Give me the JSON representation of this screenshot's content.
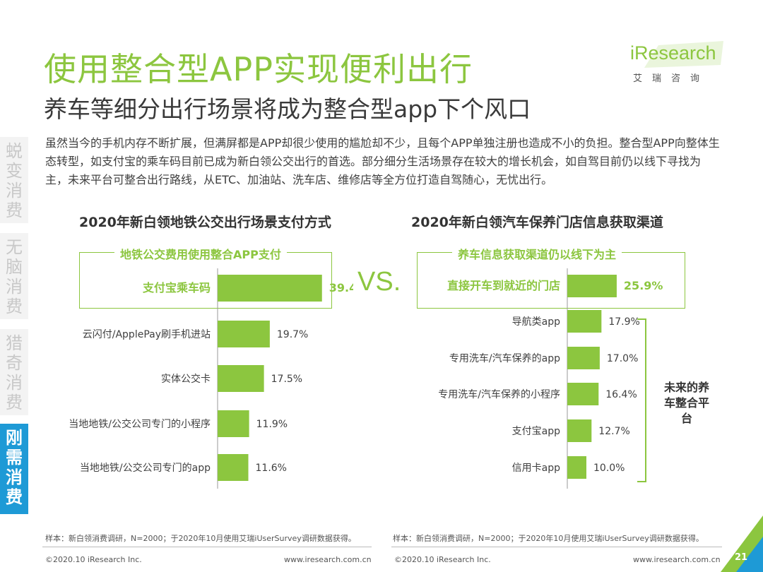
{
  "header": {
    "title": "使用整合型APP实现便利出行",
    "subtitle": "养车等细分出行场景将成为整合型app下个风口"
  },
  "logo": {
    "main": "iResearch",
    "sub": "艾瑞咨询"
  },
  "intro": "虽然当今的手机内存不断扩展，但满屏都是APP却很少使用的尴尬却不少，且每个APP单独注册也造成不小的负担。整合型APP向整体生态转型，如支付宝的乘车码目前已成为新白领公交出行的首选。部分细分生活场景存在较大的增长机会，如自驾目前仍以线下寻找为主，未来平台可整合出行路线，从ETC、加油站、洗车店、维修店等全方位打造自驾随心，无忧出行。",
  "sidebar": [
    {
      "label": "蜕变消费",
      "active": false
    },
    {
      "label": "无脑消费",
      "active": false
    },
    {
      "label": "猎奇消费",
      "active": false
    },
    {
      "label": "刚需消费",
      "active": true
    }
  ],
  "vs": "VS.",
  "colors": {
    "accent": "#8cc63f",
    "sidebar_active": "#1e9ad6",
    "bar": "#8cc63f"
  },
  "chart_data": [
    {
      "type": "bar",
      "orientation": "horizontal",
      "title": "2020年新白领地铁公交出行场景支付方式",
      "highlight_label": "地铁公交费用使用整合APP支付",
      "categories": [
        "支付宝乘车码",
        "云闪付/ApplePay刷手机进站",
        "实体公交卡",
        "当地地铁/公交公司专门的小程序",
        "当地地铁/公交公司专门的app"
      ],
      "values": [
        39.4,
        19.7,
        17.5,
        11.9,
        11.6
      ],
      "value_labels": [
        "39.4%",
        "19.7%",
        "17.5%",
        "11.9%",
        "11.6%"
      ],
      "unit": "%",
      "xlim": [
        0,
        40
      ],
      "highlighted_index": 0,
      "note": "样本：新白领消费调研，N=2000；于2020年10月使用艾瑞iUserSurvey调研数据获得。"
    },
    {
      "type": "bar",
      "orientation": "horizontal",
      "title": "2020年新白领汽车保养门店信息获取渠道",
      "highlight_label": "养车信息获取渠道仍以线下为主",
      "categories": [
        "直接开车到就近的门店",
        "导航类app",
        "专用洗车/汽车保养的app",
        "专用洗车/汽车保养的小程序",
        "支付宝app",
        "信用卡app"
      ],
      "values": [
        25.9,
        17.9,
        17.0,
        16.4,
        12.7,
        10.0
      ],
      "value_labels": [
        "25.9%",
        "17.9%",
        "17.0%",
        "16.4%",
        "12.7%",
        "10.0%"
      ],
      "unit": "%",
      "xlim": [
        0,
        40
      ],
      "highlighted_index": 0,
      "bracket_label": "未来的养车整合平台",
      "note": "样本：新白领消费调研，N=2000；于2020年10月使用艾瑞iUserSurvey调研数据获得。"
    }
  ],
  "footer": {
    "left_copyright": "©2020.10 iResearch Inc.",
    "left_url": "www.iresearch.com.cn",
    "right_copyright": "©2020.10 iResearch Inc.",
    "right_url": "www.iresearch.com.cn",
    "page_number": "21"
  }
}
